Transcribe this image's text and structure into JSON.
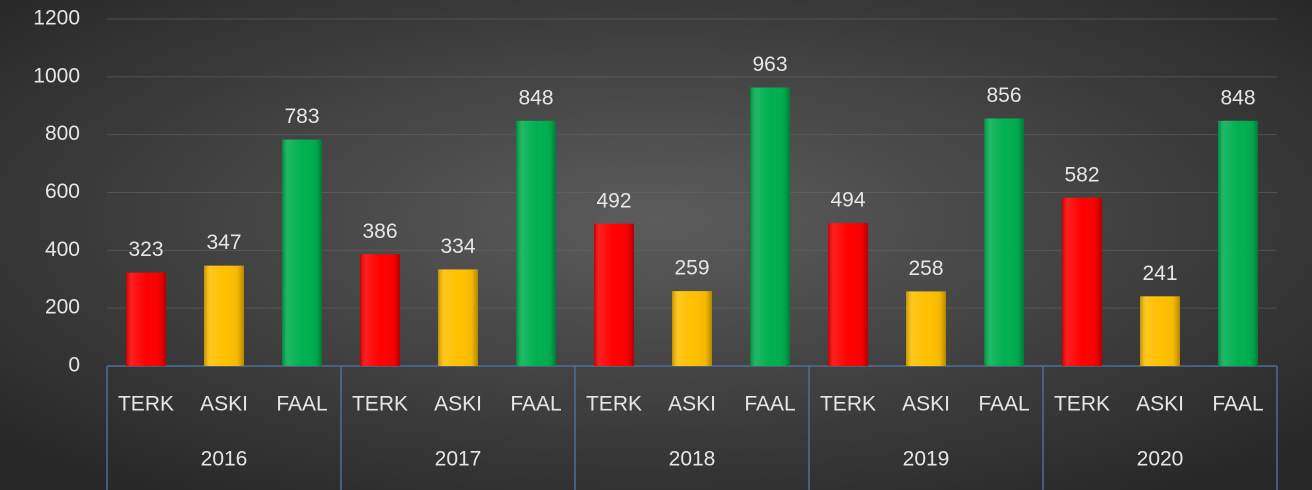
{
  "chart_data": {
    "type": "bar",
    "categories": [
      "2016",
      "2017",
      "2018",
      "2019",
      "2020"
    ],
    "series": [
      {
        "name": "TERK",
        "color": "#ff0000",
        "values": [
          323,
          386,
          492,
          494,
          582
        ]
      },
      {
        "name": "ASKI",
        "color": "#ffc000",
        "values": [
          347,
          334,
          259,
          258,
          241
        ]
      },
      {
        "name": "FAAL",
        "color": "#00b050",
        "values": [
          783,
          848,
          963,
          856,
          848
        ]
      }
    ],
    "ylim": [
      0,
      1200
    ],
    "yticks": [
      0,
      200,
      400,
      600,
      800,
      1000,
      1200
    ],
    "grid": true
  }
}
